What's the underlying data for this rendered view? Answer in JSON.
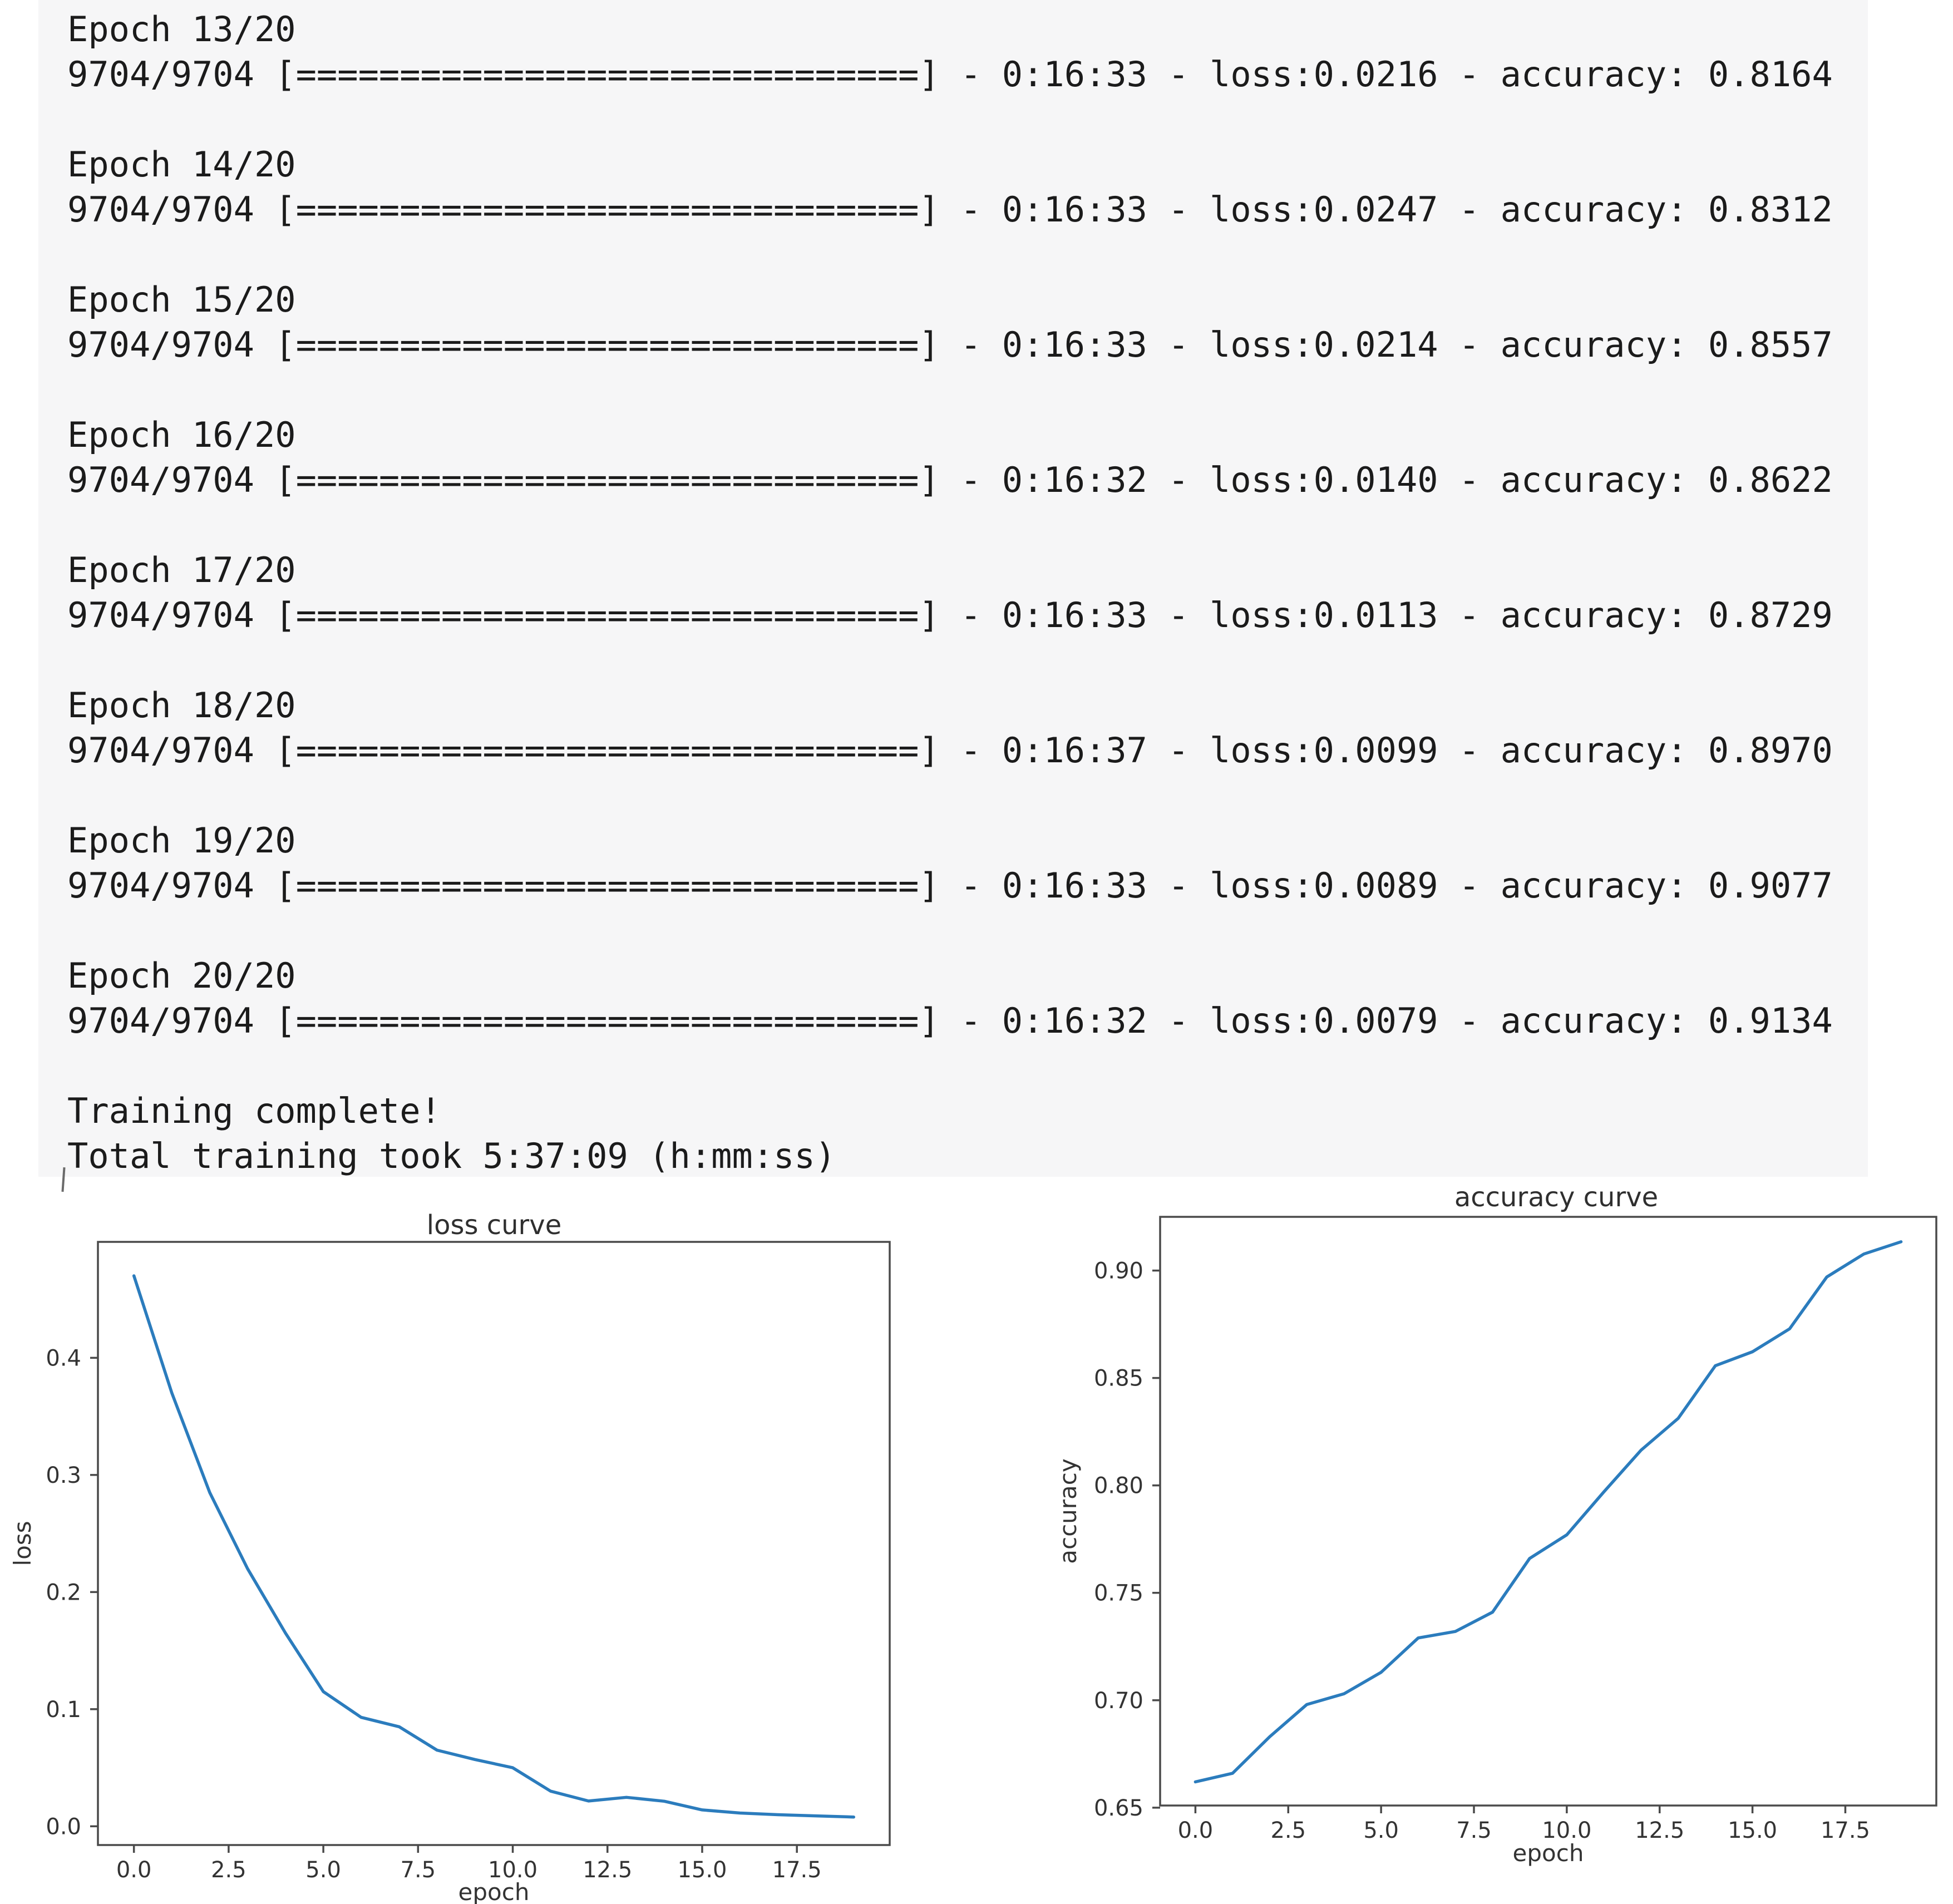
{
  "console": {
    "lines": [
      "Epoch 13/20",
      "9704/9704 [==============================] - 0:16:33 - loss:0.0216 - accuracy: 0.8164",
      "",
      "Epoch 14/20",
      "9704/9704 [==============================] - 0:16:33 - loss:0.0247 - accuracy: 0.8312",
      "",
      "Epoch 15/20",
      "9704/9704 [==============================] - 0:16:33 - loss:0.0214 - accuracy: 0.8557",
      "",
      "Epoch 16/20",
      "9704/9704 [==============================] - 0:16:32 - loss:0.0140 - accuracy: 0.8622",
      "",
      "Epoch 17/20",
      "9704/9704 [==============================] - 0:16:33 - loss:0.0113 - accuracy: 0.8729",
      "",
      "Epoch 18/20",
      "9704/9704 [==============================] - 0:16:37 - loss:0.0099 - accuracy: 0.8970",
      "",
      "Epoch 19/20",
      "9704/9704 [==============================] - 0:16:33 - loss:0.0089 - accuracy: 0.9077",
      "",
      "Epoch 20/20",
      "9704/9704 [==============================] - 0:16:32 - loss:0.0079 - accuracy: 0.9134",
      "",
      "Training complete!",
      "Total training took 5:37:09 (h:mm:ss)"
    ],
    "background": "#f6f6f7",
    "text_color": "#1b1b1b"
  },
  "colors": {
    "axis": "#4a4a4a",
    "chart_text": "#333333",
    "series_line": "#2b7cbd"
  },
  "chart_data": [
    {
      "type": "line",
      "title": "loss curve",
      "xlabel": "epoch",
      "ylabel": "loss",
      "x": [
        0,
        1,
        2,
        3,
        4,
        5,
        6,
        7,
        8,
        9,
        10,
        11,
        12,
        13,
        14,
        15,
        16,
        17,
        18,
        19
      ],
      "values": [
        0.47,
        0.37,
        0.285,
        0.22,
        0.165,
        0.115,
        0.093,
        0.085,
        0.065,
        0.057,
        0.05,
        0.03,
        0.0216,
        0.0247,
        0.0214,
        0.014,
        0.0113,
        0.0099,
        0.0089,
        0.0079
      ],
      "xlim": [
        -0.95,
        19.95
      ],
      "ylim": [
        -0.016,
        0.499
      ],
      "xtick_vals": [
        0,
        2.5,
        5,
        7.5,
        10,
        12.5,
        15,
        17.5
      ],
      "xtick_labels": [
        "0.0",
        "2.5",
        "5.0",
        "7.5",
        "10.0",
        "12.5",
        "15.0",
        "17.5"
      ],
      "ytick_vals": [
        0.0,
        0.1,
        0.2,
        0.3,
        0.4
      ],
      "ytick_labels": [
        "0.0",
        "0.1",
        "0.2",
        "0.3",
        "0.4"
      ],
      "grid": false,
      "legend": "none",
      "line_color": "#2b7cbd"
    },
    {
      "type": "line",
      "title": "accuracy curve",
      "xlabel": "epoch",
      "ylabel": "accuracy",
      "x": [
        0,
        1,
        2,
        3,
        4,
        5,
        6,
        7,
        8,
        9,
        10,
        11,
        12,
        13,
        14,
        15,
        16,
        17,
        18,
        19
      ],
      "values": [
        0.662,
        0.666,
        0.683,
        0.698,
        0.703,
        0.713,
        0.729,
        0.732,
        0.741,
        0.766,
        0.777,
        0.797,
        0.8164,
        0.8312,
        0.8557,
        0.8622,
        0.8729,
        0.897,
        0.9077,
        0.9134
      ],
      "xlim": [
        -0.95,
        19.95
      ],
      "ylim": [
        0.651,
        0.925
      ],
      "xtick_vals": [
        0,
        2.5,
        5,
        7.5,
        10,
        12.5,
        15,
        17.5
      ],
      "xtick_labels": [
        "0.0",
        "2.5",
        "5.0",
        "7.5",
        "10.0",
        "12.5",
        "15.0",
        "17.5"
      ],
      "ytick_vals": [
        0.65,
        0.7,
        0.75,
        0.8,
        0.85,
        0.9
      ],
      "ytick_labels": [
        "0.65",
        "0.70",
        "0.75",
        "0.80",
        "0.85",
        "0.90"
      ],
      "grid": false,
      "legend": "none",
      "line_color": "#2b7cbd"
    }
  ]
}
